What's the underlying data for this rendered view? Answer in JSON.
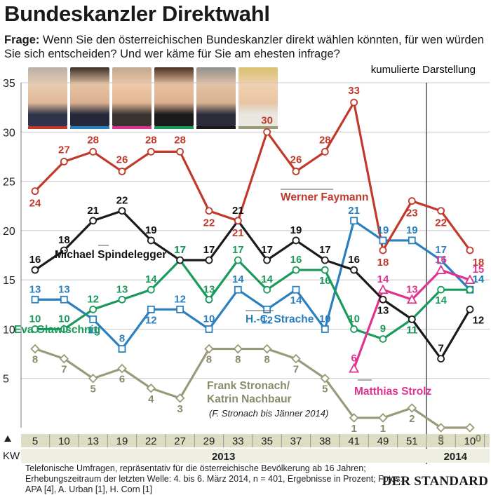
{
  "header": {
    "title": "Bundeskanzler Direktwahl",
    "question_label": "Frage:",
    "question": "Wenn Sie den österreichischen Bundeskanzler direkt wählen könnten, für wen würden Sie sich entscheiden? Und wer käme für Sie am ehesten infrage?",
    "cumulative_note": "kumulierte Darstellung"
  },
  "footer": {
    "source": "Telefonische Umfragen, repräsentativ für die österreichische Bevölkerung ab 16 Jahren; Erhebungszeitraum der letzten Welle: 4. bis 6. März 2014, n = 401, Ergebnisse in Prozent; Fotos: APA [4], A. Urban [1], H. Corn [1]",
    "publisher": "DER STANDARD"
  },
  "colors": {
    "faymann": "#c0392b",
    "spindelegger": "#1a1a1a",
    "glawischnig": "#1a9a5a",
    "strache": "#2a7fbf",
    "stronach": "#9a9a7a",
    "strolz": "#e0338f",
    "axis_band": "#ddddc4",
    "grid": "#c8c8c8"
  },
  "photos": [
    "Werner Faymann",
    "Heinz-Christian Strache",
    "Matthias Strolz",
    "Eva Glawischnig",
    "Michael Spindelegger",
    "Katrin Nachbaur"
  ],
  "chart_data": {
    "type": "line",
    "xlabel": "KW",
    "ylabel": "",
    "ylim": [
      0,
      35
    ],
    "yticks": [
      5,
      10,
      15,
      20,
      25,
      30,
      35
    ],
    "categories": [
      "5",
      "10",
      "13",
      "19",
      "22",
      "27",
      "29",
      "33",
      "35",
      "37",
      "38",
      "41",
      "49",
      "51",
      "3",
      "10"
    ],
    "years": [
      {
        "label": "2013",
        "from": 0,
        "to": 13
      },
      {
        "label": "2014",
        "from": 14,
        "to": 15
      }
    ],
    "series": [
      {
        "key": "faymann",
        "name": "Werner Faymann",
        "marker": "circle",
        "values": [
          24,
          27,
          28,
          26,
          28,
          28,
          22,
          21,
          30,
          26,
          28,
          33,
          18,
          23,
          22,
          18
        ]
      },
      {
        "key": "spindelegger",
        "name": "Michael Spindelegger",
        "marker": "circle",
        "values": [
          16,
          18,
          21,
          22,
          19,
          17,
          17,
          21,
          17,
          19,
          17,
          16,
          13,
          11,
          7,
          12
        ]
      },
      {
        "key": "glawischnig",
        "name": "Eva Glawischnig",
        "marker": "circle",
        "values": [
          10,
          10,
          12,
          13,
          14,
          17,
          13,
          17,
          14,
          16,
          16,
          10,
          9,
          11,
          14,
          14
        ]
      },
      {
        "key": "strache",
        "name": "H.-C. Strache",
        "marker": "square",
        "values": [
          13,
          13,
          11,
          8,
          12,
          12,
          10,
          14,
          12,
          14,
          10,
          21,
          19,
          19,
          17,
          14
        ]
      },
      {
        "key": "stronach",
        "name": "Frank Stronach/ Katrin Nachbaur",
        "note": "(F. Stronach bis Jänner 2014)",
        "marker": "diamond",
        "values": [
          8,
          7,
          5,
          6,
          4,
          3,
          8,
          8,
          8,
          7,
          5,
          1,
          1,
          2,
          0,
          0
        ]
      },
      {
        "key": "strolz",
        "name": "Matthias Strolz",
        "marker": "triangle",
        "values": [
          null,
          null,
          null,
          null,
          null,
          null,
          null,
          null,
          null,
          null,
          null,
          6,
          14,
          13,
          16,
          15
        ]
      }
    ]
  }
}
